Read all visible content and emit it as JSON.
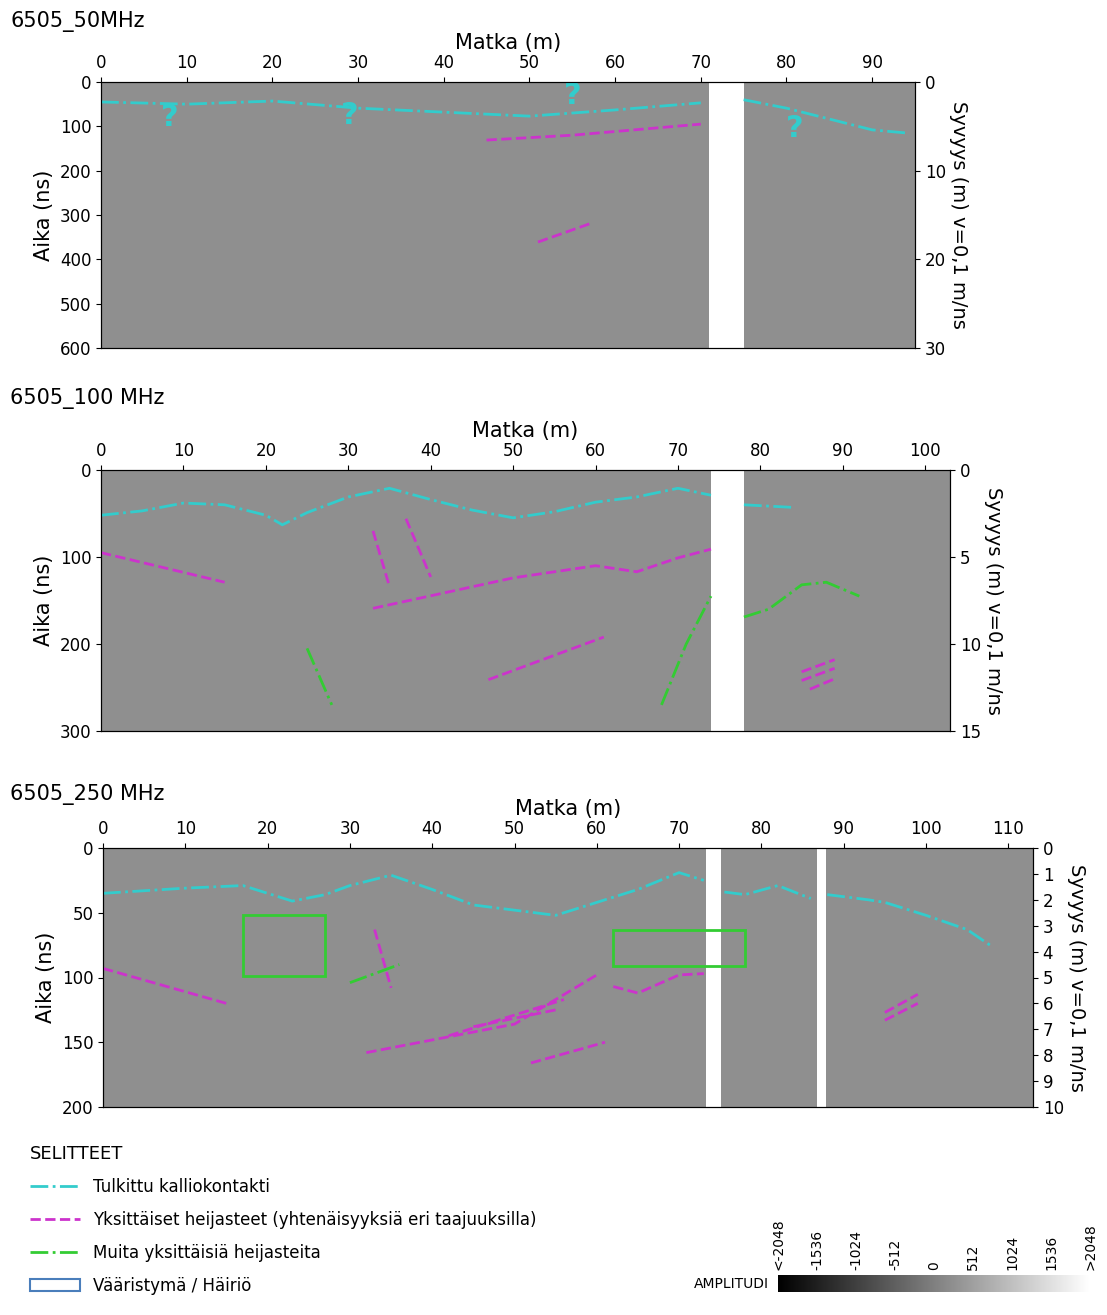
{
  "chart_data": [
    {
      "type": "radargram",
      "title": "6505_50MHz",
      "xlabel": "Matka (m)",
      "ylabel": "Aika (ns)",
      "y2label": "Syvyys (m) v=0,1 m/ns",
      "xlim": [
        0,
        95
      ],
      "xticks": [
        0,
        10,
        20,
        30,
        40,
        50,
        60,
        70,
        80,
        90
      ],
      "ylim": [
        600,
        0
      ],
      "yticks": [
        0,
        100,
        200,
        300,
        400,
        500,
        600
      ],
      "y2lim": [
        30,
        0
      ],
      "y2ticks": [
        0,
        10,
        20,
        30
      ],
      "segments": [
        [
          0,
          71
        ],
        [
          75,
          95
        ]
      ],
      "series": [
        {
          "name": "Tulkittu kalliokontakti",
          "color": "#33cccc",
          "line_style": "dashdot",
          "x": [
            0,
            10,
            20,
            30,
            40,
            50,
            60,
            70
          ],
          "values": [
            45,
            50,
            43,
            59,
            68,
            77,
            63,
            47
          ]
        },
        {
          "name": "Tulkittu kalliokontakti",
          "color": "#33cccc",
          "line_style": "dashdot",
          "x": [
            75,
            80,
            90,
            94
          ],
          "values": [
            40,
            59,
            108,
            115
          ]
        },
        {
          "name": "Yksittäiset heijasteet (yhtenäisyyksiä eri taajuuksilla)",
          "color": "#cc33cc",
          "line_style": "dashed",
          "x": [
            45,
            55,
            70
          ],
          "values": [
            131,
            120,
            95
          ]
        },
        {
          "name": "Yksittäiset heijasteet (yhtenäisyyksiä eri taajuuksilla)",
          "color": "#cc33cc",
          "line_style": "dashed",
          "x": [
            51,
            57
          ],
          "values": [
            361,
            320
          ]
        }
      ],
      "boxes": [],
      "annotations": [
        {
          "text": "?",
          "x": 8,
          "y": 81,
          "color": "#33cccc"
        },
        {
          "text": "?",
          "x": 29,
          "y": 75,
          "color": "#33cccc"
        },
        {
          "text": "?",
          "x": 55,
          "y": 30,
          "color": "#33cccc"
        },
        {
          "text": "?",
          "x": 81,
          "y": 104,
          "color": "#33cccc"
        }
      ]
    },
    {
      "type": "radargram",
      "title": "6505_100 MHz",
      "xlabel": "Matka (m)",
      "ylabel": "Aika (ns)",
      "y2label": "Syvyys (m) v=0,1 m/ns",
      "xlim": [
        0,
        103
      ],
      "xticks": [
        0,
        10,
        20,
        30,
        40,
        50,
        60,
        70,
        80,
        90,
        100
      ],
      "ylim": [
        300,
        0
      ],
      "yticks": [
        0,
        100,
        200,
        300
      ],
      "y2lim": [
        15,
        0
      ],
      "y2ticks": [
        0,
        5,
        10,
        15
      ],
      "segments": [
        [
          0,
          74
        ],
        [
          78,
          103
        ]
      ],
      "series": [
        {
          "name": "Tulkittu kalliokontakti",
          "color": "#33cccc",
          "line_style": "dashdot",
          "x": [
            0,
            5,
            10,
            15,
            20,
            22,
            25,
            30,
            35,
            40,
            45,
            50,
            55,
            60,
            65,
            70,
            74
          ],
          "values": [
            52,
            47,
            38,
            40,
            52,
            63,
            49,
            31,
            21,
            34,
            46,
            55,
            48,
            37,
            31,
            21,
            29
          ]
        },
        {
          "name": "Tulkittu kalliokontakti",
          "color": "#33cccc",
          "line_style": "dashdot",
          "x": [
            78,
            84
          ],
          "values": [
            40,
            43
          ]
        },
        {
          "name": "Yksittäiset heijasteet (yhtenäisyyksiä eri taajuuksilla)",
          "color": "#cc33cc",
          "line_style": "dashed",
          "x": [
            0,
            15
          ],
          "values": [
            95,
            129
          ]
        },
        {
          "name": "Yksittäiset heijasteet (yhtenäisyyksiä eri taajuuksilla)",
          "color": "#cc33cc",
          "line_style": "dashed",
          "x": [
            33,
            50,
            60,
            65,
            70,
            74
          ],
          "values": [
            159,
            124,
            110,
            117,
            101,
            91
          ]
        },
        {
          "name": "Yksittäiset heijasteet (yhtenäisyyksiä eri taajuuksilla)",
          "color": "#cc33cc",
          "line_style": "dashed",
          "x": [
            33,
            35
          ],
          "values": [
            70,
            134
          ]
        },
        {
          "name": "Yksittäiset heijasteet (yhtenäisyyksiä eri taajuuksilla)",
          "color": "#cc33cc",
          "line_style": "dashed",
          "x": [
            37,
            40
          ],
          "values": [
            56,
            123
          ]
        },
        {
          "name": "Yksittäiset heijasteet (yhtenäisyyksiä eri taajuuksilla)",
          "color": "#cc33cc",
          "line_style": "dashed",
          "x": [
            47,
            61
          ],
          "values": [
            241,
            192
          ]
        },
        {
          "name": "Yksittäiset heijasteet (yhtenäisyyksiä eri taajuuksilla)",
          "color": "#cc33cc",
          "line_style": "dashed",
          "x": [
            85,
            89
          ],
          "values": [
            232,
            218
          ]
        },
        {
          "name": "Yksittäiset heijasteet (yhtenäisyyksiä eri taajuuksilla)",
          "color": "#cc33cc",
          "line_style": "dashed",
          "x": [
            85,
            89
          ],
          "values": [
            242,
            228
          ]
        },
        {
          "name": "Yksittäiset heijasteet (yhtenäisyyksiä eri taajuuksilla)",
          "color": "#cc33cc",
          "line_style": "dashed",
          "x": [
            86,
            89
          ],
          "values": [
            252,
            240
          ]
        },
        {
          "name": "Muita yksittäisiä heijasteita",
          "color": "#33cc33",
          "line_style": "dashdot",
          "x": [
            25,
            28
          ],
          "values": [
            205,
            270
          ]
        },
        {
          "name": "Muita yksittäisiä heijasteita",
          "color": "#33cc33",
          "line_style": "dashdot",
          "x": [
            68,
            71,
            74
          ],
          "values": [
            270,
            200,
            145
          ]
        },
        {
          "name": "Muita yksittäisiä heijasteita",
          "color": "#33cc33",
          "line_style": "dashdot",
          "x": [
            78,
            81,
            85,
            88,
            92
          ],
          "values": [
            169,
            160,
            132,
            129,
            145
          ]
        }
      ],
      "boxes": [],
      "annotations": []
    },
    {
      "type": "radargram",
      "title": "6505_250 MHz",
      "xlabel": "Matka (m)",
      "ylabel": "Aika (ns)",
      "y2label": "Syvyys (m) v=0,1 m/ns",
      "xlim": [
        0,
        113
      ],
      "xticks": [
        0,
        10,
        20,
        30,
        40,
        50,
        60,
        70,
        80,
        90,
        100,
        110
      ],
      "ylim": [
        200,
        0
      ],
      "yticks": [
        0,
        50,
        100,
        150,
        200
      ],
      "y2lim": [
        10,
        0
      ],
      "y2ticks": [
        0,
        1,
        2,
        3,
        4,
        5,
        6,
        7,
        8,
        9,
        10
      ],
      "segments": [
        [
          0,
          73.3
        ],
        [
          75.1,
          86.7
        ],
        [
          87.9,
          113
        ]
      ],
      "series": [
        {
          "name": "Tulkittu kalliokontakti",
          "color": "#33cccc",
          "line_style": "dashdot",
          "x": [
            0,
            10,
            17,
            23,
            27,
            30,
            35,
            40,
            45,
            50,
            55,
            60,
            65,
            70,
            73
          ],
          "values": [
            35,
            31,
            29,
            41,
            36,
            29,
            21,
            32,
            44,
            48,
            52,
            42,
            32,
            19,
            25
          ]
        },
        {
          "name": "Tulkittu kalliokontakti",
          "color": "#33cccc",
          "line_style": "dashdot",
          "x": [
            75.5,
            78,
            82,
            86
          ],
          "values": [
            34,
            36,
            29,
            39
          ]
        },
        {
          "name": "Tulkittu kalliokontakti",
          "color": "#33cccc",
          "line_style": "dashdot",
          "x": [
            88,
            93,
            95,
            100,
            105,
            108
          ],
          "values": [
            36,
            40,
            42,
            52,
            63,
            76
          ]
        },
        {
          "name": "Yksittäiset heijasteet (yhtenäisyyksiä eri taajuuksilla)",
          "color": "#cc33cc",
          "line_style": "dashed",
          "x": [
            0,
            15
          ],
          "values": [
            93,
            120
          ]
        },
        {
          "name": "Yksittäiset heijasteet (yhtenäisyyksiä eri taajuuksilla)",
          "color": "#cc33cc",
          "line_style": "dashed",
          "x": [
            33,
            35
          ],
          "values": [
            63,
            108
          ]
        },
        {
          "name": "Yksittäiset heijasteet (yhtenäisyyksiä eri taajuuksilla)",
          "color": "#cc33cc",
          "line_style": "dashed",
          "x": [
            32,
            50,
            60
          ],
          "values": [
            158,
            136,
            98
          ]
        },
        {
          "name": "Yksittäiset heijasteet (yhtenäisyyksiä eri taajuuksilla)",
          "color": "#cc33cc",
          "line_style": "dashed",
          "x": [
            42,
            56
          ],
          "values": [
            145,
            117
          ]
        },
        {
          "name": "Yksittäiset heijasteet (yhtenäisyyksiä eri taajuuksilla)",
          "color": "#cc33cc",
          "line_style": "dashed",
          "x": [
            45,
            55
          ],
          "values": [
            138,
            125
          ]
        },
        {
          "name": "Yksittäiset heijasteet (yhtenäisyyksiä eri taajuuksilla)",
          "color": "#cc33cc",
          "line_style": "dashed",
          "x": [
            52,
            61
          ],
          "values": [
            166,
            150
          ]
        },
        {
          "name": "Yksittäiset heijasteet (yhtenäisyyksiä eri taajuuksilla)",
          "color": "#cc33cc",
          "line_style": "dashed",
          "x": [
            62,
            65,
            70,
            73
          ],
          "values": [
            107,
            112,
            98,
            97
          ]
        },
        {
          "name": "Yksittäiset heijasteet (yhtenäisyyksiä eri taajuuksilla)",
          "color": "#cc33cc",
          "line_style": "dashed",
          "x": [
            95,
            99
          ],
          "values": [
            127,
            113
          ]
        },
        {
          "name": "Yksittäiset heijasteet (yhtenäisyyksiä eri taajuuksilla)",
          "color": "#cc33cc",
          "line_style": "dashed",
          "x": [
            95,
            99
          ],
          "values": [
            133,
            120
          ]
        },
        {
          "name": "Muita yksittäisiä heijasteita",
          "color": "#33cc33",
          "line_style": "dashdot",
          "x": [
            30,
            36
          ],
          "values": [
            104,
            90
          ]
        }
      ],
      "boxes": [
        {
          "x": [
            17,
            27
          ],
          "y": [
            52,
            99
          ],
          "color": "#33cc33"
        },
        {
          "x": [
            62,
            78
          ],
          "y": [
            63,
            91
          ],
          "color": "#33cc33"
        }
      ],
      "annotations": []
    }
  ],
  "legend_panel": {
    "title": "SELITTEET",
    "entries": [
      {
        "label": "Tulkittu kalliokontakti",
        "type": "line",
        "color": "#33cccc",
        "line_style": "dashdot"
      },
      {
        "label": "Yksittäiset heijasteet (yhtenäisyyksiä eri taajuuksilla)",
        "type": "line",
        "color": "#cc33cc",
        "line_style": "dashed"
      },
      {
        "label": "Muita yksittäisiä heijasteita",
        "type": "line",
        "color": "#33cc33",
        "line_style": "dashdot"
      },
      {
        "label": "Vääristymä / Häiriö",
        "type": "box",
        "color": "#4a7ebb"
      }
    ]
  },
  "colorbar": {
    "label": "AMPLITUDI",
    "range": [
      -2048,
      2048
    ],
    "ticks": [
      {
        "value": -2048,
        "label": "<-2048"
      },
      -1536,
      -1024,
      -512,
      0,
      512,
      1024,
      1536,
      {
        "value": 2048,
        "label": ">2048"
      }
    ]
  }
}
